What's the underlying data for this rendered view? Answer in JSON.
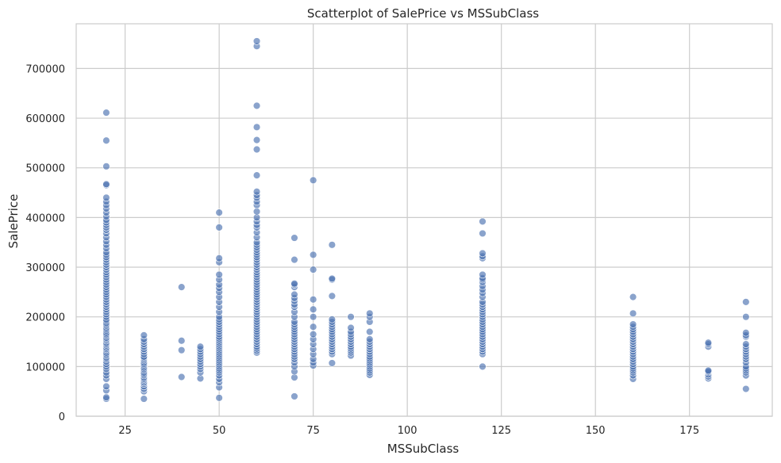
{
  "chart_data": {
    "type": "scatter",
    "title": "Scatterplot of SalePrice vs MSSubClass",
    "xlabel": "MSSubClass",
    "ylabel": "SalePrice",
    "xlim": [
      12,
      197
    ],
    "ylim": [
      0,
      790000
    ],
    "xticks": [
      25,
      50,
      75,
      100,
      125,
      150,
      175
    ],
    "yticks": [
      0,
      100000,
      200000,
      300000,
      400000,
      500000,
      600000,
      700000
    ],
    "grid": true,
    "point_color": "#4c72b0",
    "point_opacity": 0.65,
    "groups": [
      {
        "x": 20,
        "y": [
          35000,
          38000,
          52000,
          60000,
          75000,
          82000,
          88000,
          95000,
          100000,
          105000,
          110000,
          115000,
          118000,
          122000,
          125000,
          128000,
          132000,
          135000,
          138000,
          142000,
          145000,
          148000,
          152000,
          155000,
          158000,
          162000,
          165000,
          168000,
          172000,
          175000,
          178000,
          182000,
          185000,
          188000,
          192000,
          195000,
          200000,
          205000,
          210000,
          215000,
          220000,
          225000,
          230000,
          235000,
          240000,
          245000,
          250000,
          255000,
          260000,
          265000,
          270000,
          275000,
          280000,
          285000,
          290000,
          295000,
          300000,
          305000,
          310000,
          315000,
          320000,
          325000,
          330000,
          338000,
          345000,
          352000,
          360000,
          368000,
          375000,
          380000,
          385000,
          390000,
          395000,
          402000,
          410000,
          418000,
          425000,
          432000,
          440000,
          465000,
          467000,
          503000,
          555000,
          611000
        ]
      },
      {
        "x": 30,
        "y": [
          35000,
          50000,
          55000,
          60000,
          65000,
          68000,
          72000,
          75000,
          78000,
          82000,
          85000,
          88000,
          92000,
          95000,
          98000,
          102000,
          105000,
          108000,
          112000,
          115000,
          118000,
          120000,
          125000,
          130000,
          135000,
          140000,
          145000,
          150000,
          155000,
          163000
        ]
      },
      {
        "x": 40,
        "y": [
          79000,
          133000,
          152000,
          260000
        ]
      },
      {
        "x": 45,
        "y": [
          76000,
          88000,
          95000,
          100000,
          105000,
          110000,
          115000,
          120000,
          125000,
          130000,
          135000,
          140000
        ]
      },
      {
        "x": 50,
        "y": [
          37000,
          58000,
          68000,
          75000,
          82000,
          88000,
          92000,
          96000,
          100000,
          104000,
          108000,
          112000,
          116000,
          120000,
          124000,
          128000,
          132000,
          136000,
          140000,
          144000,
          148000,
          152000,
          156000,
          160000,
          165000,
          170000,
          175000,
          180000,
          185000,
          190000,
          195000,
          200000,
          210000,
          220000,
          230000,
          240000,
          250000,
          258000,
          265000,
          275000,
          285000,
          310000,
          318000,
          380000,
          410000
        ]
      },
      {
        "x": 60,
        "y": [
          128000,
          132000,
          136000,
          140000,
          145000,
          150000,
          155000,
          160000,
          165000,
          170000,
          175000,
          180000,
          185000,
          190000,
          195000,
          200000,
          205000,
          210000,
          215000,
          220000,
          225000,
          230000,
          235000,
          240000,
          245000,
          250000,
          255000,
          260000,
          265000,
          270000,
          275000,
          280000,
          285000,
          290000,
          295000,
          300000,
          305000,
          310000,
          315000,
          320000,
          325000,
          330000,
          335000,
          340000,
          345000,
          350000,
          360000,
          370000,
          380000,
          385000,
          392000,
          400000,
          412000,
          425000,
          432000,
          440000,
          445000,
          452000,
          485000,
          537000,
          556000,
          582000,
          625000,
          745000,
          755000
        ]
      },
      {
        "x": 70,
        "y": [
          40000,
          78000,
          90000,
          100000,
          108000,
          115000,
          120000,
          125000,
          130000,
          135000,
          140000,
          145000,
          150000,
          155000,
          160000,
          165000,
          170000,
          175000,
          180000,
          185000,
          190000,
          200000,
          210000,
          220000,
          225000,
          232000,
          238000,
          245000,
          260000,
          265000,
          267000,
          315000,
          359000
        ]
      },
      {
        "x": 75,
        "y": [
          102000,
          108000,
          115000,
          125000,
          135000,
          145000,
          155000,
          165000,
          180000,
          200000,
          215000,
          235000,
          295000,
          325000,
          475000
        ]
      },
      {
        "x": 80,
        "y": [
          107000,
          125000,
          130000,
          135000,
          140000,
          145000,
          150000,
          155000,
          160000,
          165000,
          170000,
          175000,
          180000,
          185000,
          190000,
          195000,
          242000,
          275000,
          277000,
          345000
        ]
      },
      {
        "x": 85,
        "y": [
          122000,
          128000,
          132000,
          136000,
          140000,
          145000,
          150000,
          155000,
          160000,
          165000,
          170000,
          178000,
          200000
        ]
      },
      {
        "x": 90,
        "y": [
          83000,
          88000,
          92000,
          96000,
          100000,
          104000,
          108000,
          112000,
          116000,
          120000,
          125000,
          130000,
          135000,
          140000,
          145000,
          150000,
          155000,
          170000,
          190000,
          200000,
          207000
        ]
      },
      {
        "x": 120,
        "y": [
          100000,
          125000,
          130000,
          135000,
          140000,
          145000,
          150000,
          155000,
          160000,
          165000,
          170000,
          175000,
          180000,
          185000,
          190000,
          195000,
          200000,
          205000,
          210000,
          215000,
          220000,
          225000,
          230000,
          240000,
          248000,
          255000,
          262000,
          270000,
          275000,
          278000,
          285000,
          318000,
          322000,
          328000,
          368000,
          392000
        ]
      },
      {
        "x": 160,
        "y": [
          75000,
          82000,
          88000,
          92000,
          96000,
          100000,
          105000,
          110000,
          115000,
          120000,
          125000,
          130000,
          135000,
          140000,
          145000,
          150000,
          155000,
          160000,
          165000,
          170000,
          175000,
          180000,
          185000,
          207000,
          240000
        ]
      },
      {
        "x": 180,
        "y": [
          76000,
          80000,
          84000,
          88000,
          90000,
          92000,
          140000,
          145000,
          148000
        ]
      },
      {
        "x": 190,
        "y": [
          55000,
          82000,
          88000,
          92000,
          96000,
          100000,
          108000,
          115000,
          120000,
          125000,
          130000,
          135000,
          140000,
          145000,
          160000,
          163000,
          168000,
          200000,
          230000
        ]
      }
    ]
  }
}
